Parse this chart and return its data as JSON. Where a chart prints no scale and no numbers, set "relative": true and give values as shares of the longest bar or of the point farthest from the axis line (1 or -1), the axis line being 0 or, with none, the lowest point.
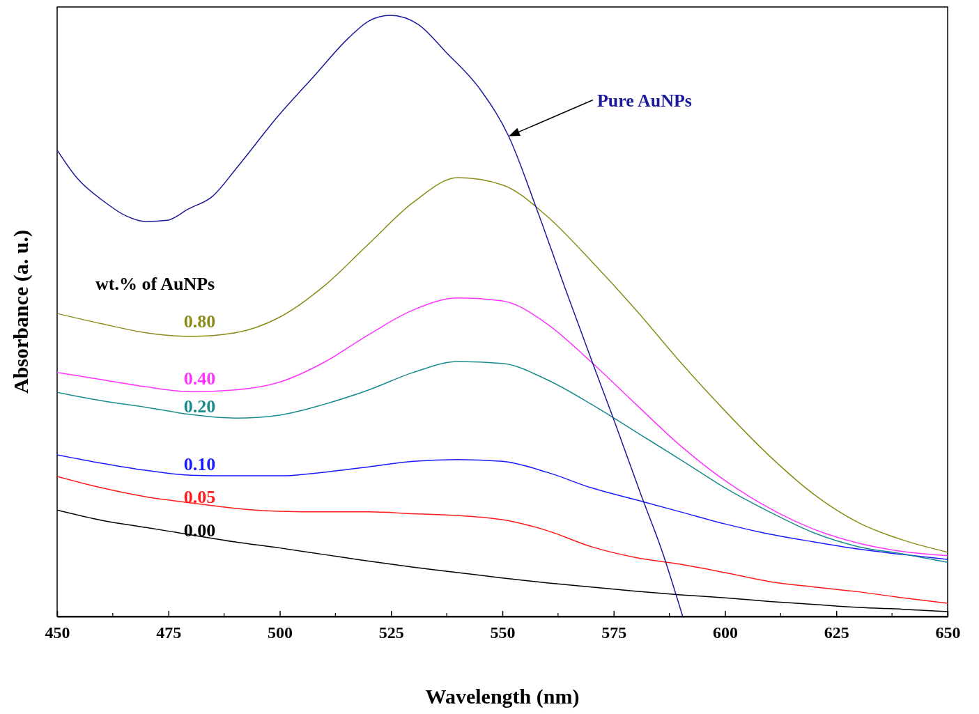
{
  "chart_data": {
    "type": "line",
    "relative": true,
    "xlabel": "Wavelength (nm)",
    "ylabel": "Absorbance (a. u.)",
    "legend_title": "wt.% of AuNPs",
    "xlim": [
      450,
      650
    ],
    "xticks": [
      450,
      475,
      500,
      525,
      550,
      575,
      600,
      625,
      650
    ],
    "grid": false,
    "line_style": "solid",
    "marker": "none",
    "x": [
      450,
      460,
      470,
      480,
      490,
      500,
      510,
      520,
      530,
      540,
      550,
      560,
      570,
      580,
      590,
      600,
      610,
      620,
      630,
      640,
      650
    ],
    "series": [
      {
        "name": "0.00",
        "color": "#000000",
        "values": [
          0.177,
          0.16,
          0.148,
          0.136,
          0.124,
          0.114,
          0.103,
          0.092,
          0.082,
          0.073,
          0.064,
          0.056,
          0.049,
          0.042,
          0.036,
          0.031,
          0.025,
          0.02,
          0.015,
          0.012,
          0.008
        ]
      },
      {
        "name": "0.05",
        "color": "#ff1a1a",
        "values": [
          0.233,
          0.214,
          0.199,
          0.189,
          0.18,
          0.175,
          0.174,
          0.174,
          0.171,
          0.168,
          0.161,
          0.143,
          0.116,
          0.098,
          0.087,
          0.073,
          0.058,
          0.049,
          0.041,
          0.031,
          0.022
        ]
      },
      {
        "name": "0.10",
        "color": "#1a1aff",
        "values": [
          0.269,
          0.255,
          0.243,
          0.235,
          0.234,
          0.234,
          0.24,
          0.249,
          0.258,
          0.261,
          0.258,
          0.24,
          0.214,
          0.194,
          0.174,
          0.154,
          0.137,
          0.124,
          0.112,
          0.103,
          0.095
        ]
      },
      {
        "name": "0.20",
        "color": "#1a8b8b",
        "values": [
          0.373,
          0.359,
          0.348,
          0.336,
          0.33,
          0.335,
          0.353,
          0.377,
          0.406,
          0.424,
          0.421,
          0.394,
          0.353,
          0.307,
          0.261,
          0.214,
          0.174,
          0.139,
          0.116,
          0.104,
          0.09
        ]
      },
      {
        "name": "0.40",
        "color": "#ff33ff",
        "values": [
          0.406,
          0.394,
          0.382,
          0.374,
          0.377,
          0.39,
          0.423,
          0.469,
          0.51,
          0.53,
          0.525,
          0.487,
          0.423,
          0.353,
          0.284,
          0.226,
          0.18,
          0.145,
          0.122,
          0.108,
          0.101
        ]
      },
      {
        "name": "0.80",
        "color": "#8b8b1a",
        "values": [
          0.504,
          0.487,
          0.472,
          0.466,
          0.472,
          0.498,
          0.55,
          0.62,
          0.689,
          0.73,
          0.718,
          0.666,
          0.591,
          0.51,
          0.423,
          0.342,
          0.267,
          0.203,
          0.156,
          0.127,
          0.107
        ]
      },
      {
        "name": "Pure AuNPs",
        "color": "#1a1a9a",
        "x": [
          450,
          454.4,
          460.6,
          465.3,
          470,
          474.7,
          479.5,
          484.9,
          490.4,
          499.8,
          507.6,
          515.4,
          520.1,
          524.8,
          531.1,
          537.3,
          545.2,
          551.4,
          557.7,
          563.9,
          570.2,
          574.9,
          581.1,
          585.8,
          590.5
        ],
        "values": [
          0.776,
          0.73,
          0.69,
          0.667,
          0.657,
          0.659,
          0.678,
          0.699,
          0.747,
          0.834,
          0.898,
          0.962,
          0.991,
          1.0,
          0.985,
          0.939,
          0.875,
          0.799,
          0.678,
          0.55,
          0.423,
          0.33,
          0.203,
          0.11,
          0
        ]
      }
    ]
  }
}
